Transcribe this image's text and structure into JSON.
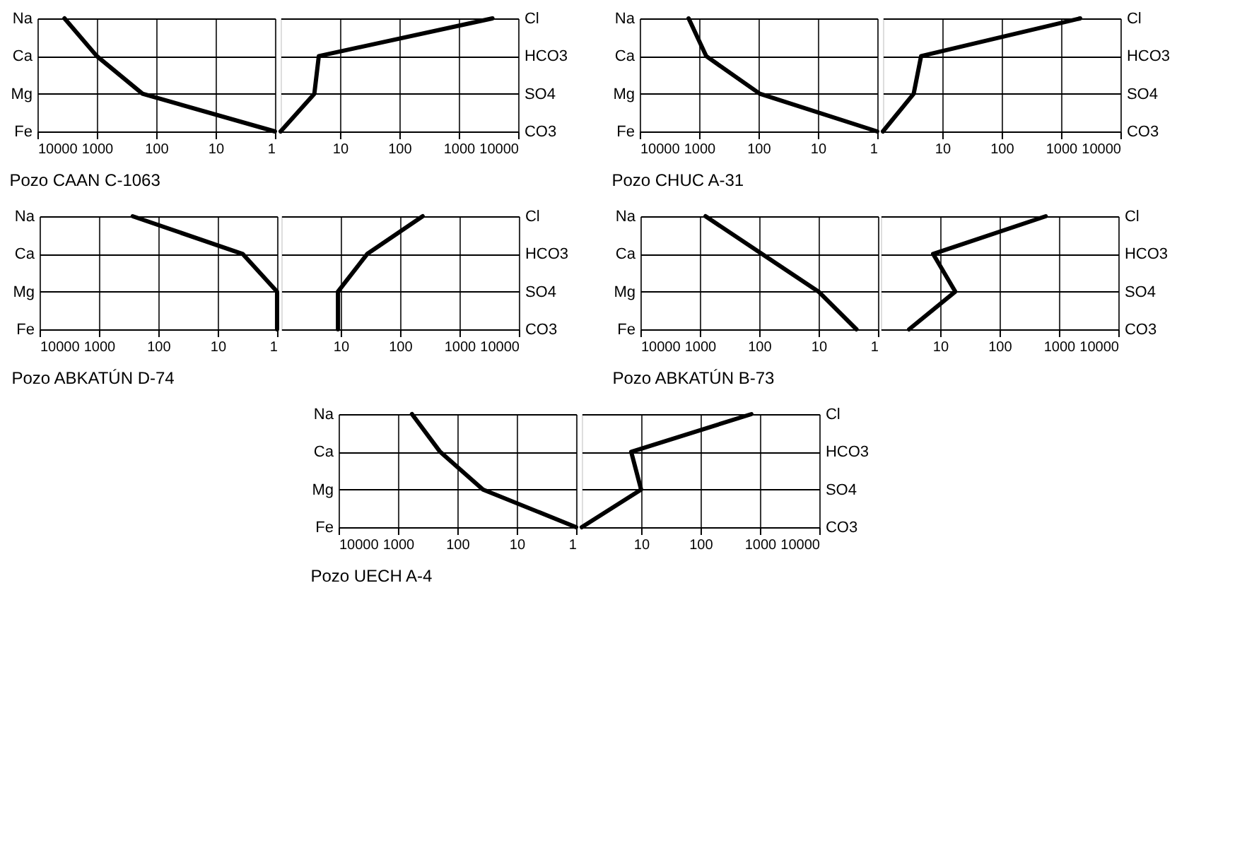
{
  "chart_data": [
    {
      "type": "line",
      "orientation": "horizontal",
      "title": "Pozo CAAN C-1063",
      "categories": [
        "Na",
        "Ca",
        "Mg",
        "Fe"
      ],
      "log": "x",
      "xlim": [
        10000,
        1
      ],
      "xticks": [
        10000,
        1000,
        100,
        10,
        1
      ],
      "grid": true,
      "series": [
        {
          "color": "#000000",
          "values": [
            3500,
            1000,
            170,
            1
          ]
        }
      ]
    },
    {
      "type": "line",
      "orientation": "horizontal",
      "y2_categories": [
        "Cl",
        "HCO3",
        "SO4",
        "CO3"
      ],
      "log": "x",
      "xlim": [
        1,
        10000
      ],
      "xticks": [
        10,
        100,
        1000,
        10000
      ],
      "grid": true,
      "series": [
        {
          "color": "#000000",
          "values": [
            3700,
            4.4,
            3.7,
            1
          ]
        }
      ]
    },
    {
      "type": "line",
      "orientation": "horizontal",
      "title": "Pozo CHUC A-31",
      "categories": [
        "Na",
        "Ca",
        "Mg",
        "Fe"
      ],
      "log": "x",
      "xlim": [
        10000,
        1
      ],
      "xticks": [
        10000,
        1000,
        100,
        10,
        1
      ],
      "grid": true,
      "series": [
        {
          "color": "#000000",
          "values": [
            1500,
            760,
            95,
            1
          ]
        }
      ]
    },
    {
      "type": "line",
      "orientation": "horizontal",
      "y2_categories": [
        "Cl",
        "HCO3",
        "SO4",
        "CO3"
      ],
      "log": "x",
      "xlim": [
        1,
        10000
      ],
      "xticks": [
        10,
        100,
        1000,
        10000
      ],
      "grid": true,
      "series": [
        {
          "color": "#000000",
          "values": [
            2100,
            4.4,
            3.3,
            1
          ]
        }
      ]
    },
    {
      "type": "line",
      "orientation": "horizontal",
      "title": "Pozo ABKATÚN D-74",
      "categories": [
        "Na",
        "Ca",
        "Mg",
        "Fe"
      ],
      "log": "x",
      "xlim": [
        10000,
        1
      ],
      "xticks": [
        10000,
        1000,
        100,
        10,
        1
      ],
      "grid": true,
      "series": [
        {
          "color": "#000000",
          "values": [
            270,
            3.8,
            1,
            1
          ]
        }
      ]
    },
    {
      "type": "line",
      "orientation": "horizontal",
      "y2_categories": [
        "Cl",
        "HCO3",
        "SO4",
        "CO3"
      ],
      "log": "x",
      "xlim": [
        1,
        10000
      ],
      "xticks": [
        10,
        100,
        1000,
        10000
      ],
      "grid": true,
      "series": [
        {
          "color": "#000000",
          "values": [
            240,
            28,
            9,
            9
          ]
        }
      ]
    },
    {
      "type": "line",
      "orientation": "horizontal",
      "title": "Pozo ABKATÚN B-73",
      "categories": [
        "Na",
        "Ca",
        "Mg",
        "Fe"
      ],
      "log": "x",
      "xlim": [
        10000,
        1
      ],
      "xticks": [
        10000,
        1000,
        100,
        10,
        1
      ],
      "grid": true,
      "series": [
        {
          "color": "#000000",
          "values": [
            800,
            90,
            10,
            2.3
          ]
        }
      ]
    },
    {
      "type": "line",
      "orientation": "horizontal",
      "y2_categories": [
        "Cl",
        "HCO3",
        "SO4",
        "CO3"
      ],
      "log": "x",
      "xlim": [
        1,
        10000
      ],
      "xticks": [
        10,
        100,
        1000,
        10000
      ],
      "grid": true,
      "series": [
        {
          "color": "#000000",
          "values": [
            600,
            7.6,
            18,
            3
          ]
        }
      ]
    },
    {
      "type": "line",
      "orientation": "horizontal",
      "title": "Pozo UECH A-4",
      "categories": [
        "Na",
        "Ca",
        "Mg",
        "Fe"
      ],
      "log": "x",
      "xlim": [
        10000,
        1
      ],
      "xticks": [
        10000,
        1000,
        100,
        10,
        1
      ],
      "grid": true,
      "series": [
        {
          "color": "#000000",
          "values": [
            580,
            195,
            37,
            1
          ]
        }
      ]
    },
    {
      "type": "line",
      "orientation": "horizontal",
      "y2_categories": [
        "Cl",
        "HCO3",
        "SO4",
        "CO3"
      ],
      "log": "x",
      "xlim": [
        1,
        10000
      ],
      "xticks": [
        10,
        100,
        1000,
        10000
      ],
      "grid": true,
      "series": [
        {
          "color": "#000000",
          "values": [
            720,
            6.8,
            10,
            1
          ]
        }
      ]
    }
  ]
}
